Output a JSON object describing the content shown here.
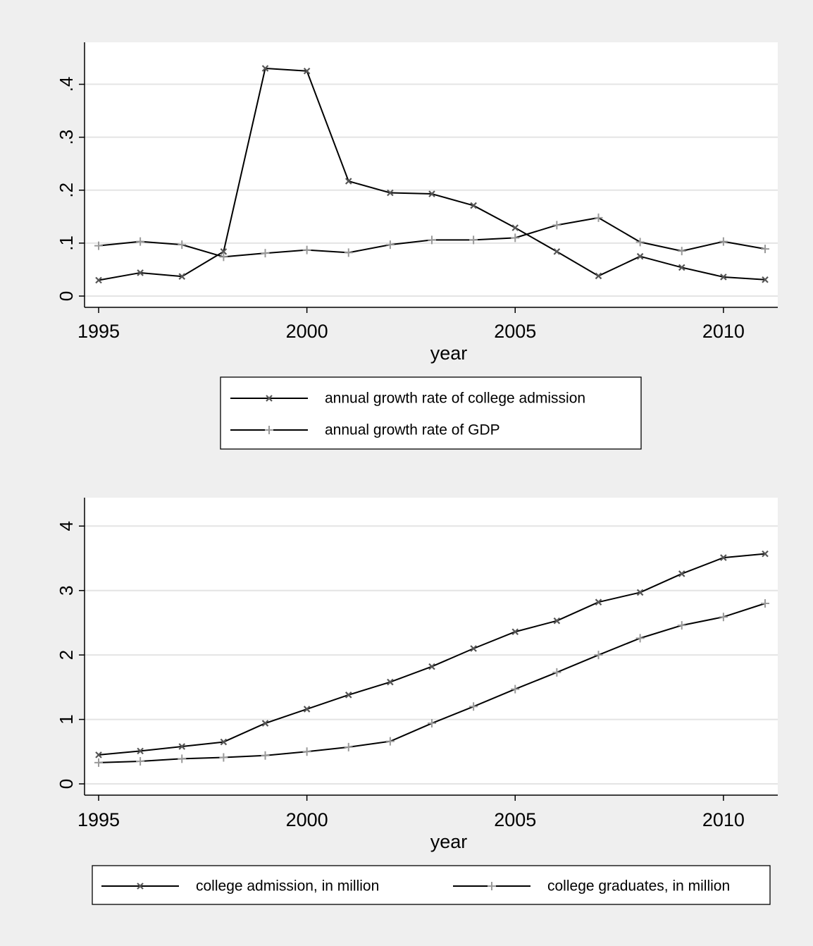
{
  "colors": {
    "outer_background": "#efefef",
    "plot_background": "#ffffff",
    "grid": "#e4e4e4",
    "line": "#000000",
    "marker_x": "#555555",
    "marker_plus": "#9a9a9a"
  },
  "chart_data": [
    {
      "type": "line",
      "title": "",
      "xlabel": "year",
      "ylabel": "",
      "xlim": [
        1995,
        2011
      ],
      "ylim": [
        0,
        0.45
      ],
      "x_ticks": [
        1995,
        2000,
        2005,
        2010
      ],
      "x_tick_labels": [
        "1995",
        "2000",
        "2005",
        "2010"
      ],
      "y_ticks": [
        0,
        0.1,
        0.2,
        0.3,
        0.4
      ],
      "y_tick_labels": [
        "0",
        ".1",
        ".2",
        ".3",
        ".4"
      ],
      "grid": true,
      "legend_position": "below",
      "legend_columns": 1,
      "x": [
        1995,
        1996,
        1997,
        1998,
        1999,
        2000,
        2001,
        2002,
        2003,
        2004,
        2005,
        2006,
        2007,
        2008,
        2009,
        2010,
        2011
      ],
      "series": [
        {
          "name": "annual growth rate of college admission",
          "marker": "x",
          "values": [
            0.03,
            0.044,
            0.037,
            0.084,
            0.43,
            0.425,
            0.217,
            0.195,
            0.193,
            0.171,
            0.129,
            0.084,
            0.038,
            0.075,
            0.054,
            0.036,
            0.031
          ]
        },
        {
          "name": "annual growth rate of GDP",
          "marker": "plus",
          "values": [
            0.095,
            0.103,
            0.097,
            0.074,
            0.081,
            0.087,
            0.082,
            0.097,
            0.106,
            0.106,
            0.11,
            0.134,
            0.148,
            0.102,
            0.085,
            0.103,
            0.089
          ]
        }
      ]
    },
    {
      "type": "line",
      "title": "",
      "xlabel": "year",
      "ylabel": "",
      "xlim": [
        1995,
        2011
      ],
      "ylim": [
        0,
        4.2
      ],
      "x_ticks": [
        1995,
        2000,
        2005,
        2010
      ],
      "x_tick_labels": [
        "1995",
        "2000",
        "2005",
        "2010"
      ],
      "y_ticks": [
        0,
        1,
        2,
        3,
        4
      ],
      "y_tick_labels": [
        "0",
        "1",
        "2",
        "3",
        "4"
      ],
      "grid": true,
      "legend_position": "below",
      "legend_columns": 2,
      "x": [
        1995,
        1996,
        1997,
        1998,
        1999,
        2000,
        2001,
        2002,
        2003,
        2004,
        2005,
        2006,
        2007,
        2008,
        2009,
        2010,
        2011
      ],
      "series": [
        {
          "name": "college admission, in million",
          "marker": "x",
          "values": [
            0.45,
            0.51,
            0.58,
            0.65,
            0.94,
            1.16,
            1.38,
            1.58,
            1.82,
            2.1,
            2.36,
            2.53,
            2.82,
            2.97,
            3.26,
            3.51,
            3.57
          ]
        },
        {
          "name": "college graduates, in million",
          "marker": "plus",
          "values": [
            0.33,
            0.35,
            0.39,
            0.41,
            0.44,
            0.5,
            0.57,
            0.66,
            0.94,
            1.2,
            1.47,
            1.73,
            2.0,
            2.26,
            2.46,
            2.59,
            2.8
          ]
        }
      ]
    }
  ]
}
